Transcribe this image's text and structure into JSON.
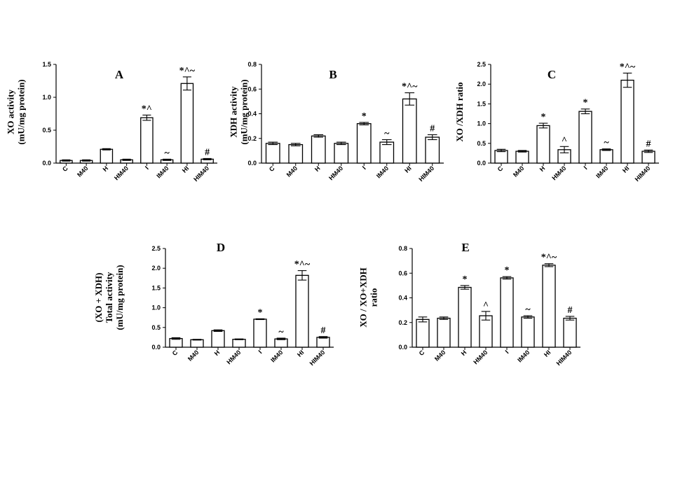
{
  "chart_data": [
    {
      "type": "bar",
      "panel": "A",
      "ylabel": [
        "XO activity",
        "(mU/mg protein)"
      ],
      "categories": [
        "C",
        "M40",
        "H",
        "HM40",
        "I",
        "IM40",
        "HI",
        "HIM40"
      ],
      "values": [
        0.04,
        0.04,
        0.21,
        0.05,
        0.69,
        0.05,
        1.21,
        0.06
      ],
      "errors": [
        0.01,
        0.01,
        0.01,
        0.01,
        0.04,
        0.01,
        0.1,
        0.01
      ],
      "annotations": [
        "",
        "",
        "",
        "",
        "*^",
        "~",
        "*^~",
        "#"
      ],
      "ylim": [
        0,
        1.5
      ],
      "yticks": [
        "0.0",
        "0.5",
        "1.0",
        "1.5"
      ],
      "ytick_values": [
        0,
        0.5,
        1.0,
        1.5
      ]
    },
    {
      "type": "bar",
      "panel": "B",
      "ylabel": [
        "XDH activity",
        "(mU/mg protein)"
      ],
      "categories": [
        "C",
        "M40",
        "H",
        "HM40",
        "I",
        "IM40",
        "HI",
        "HIM40"
      ],
      "values": [
        0.16,
        0.15,
        0.22,
        0.16,
        0.32,
        0.17,
        0.52,
        0.21
      ],
      "errors": [
        0.01,
        0.01,
        0.01,
        0.01,
        0.01,
        0.02,
        0.05,
        0.02
      ],
      "annotations": [
        "",
        "",
        "",
        "",
        "*",
        "~",
        "*^~",
        "#"
      ],
      "ylim": [
        0,
        0.8
      ],
      "yticks": [
        "0.0",
        "0.2",
        "0.4",
        "0.6",
        "0.8"
      ],
      "ytick_values": [
        0,
        0.2,
        0.4,
        0.6,
        0.8
      ]
    },
    {
      "type": "bar",
      "panel": "C",
      "ylabel": [
        "XO /XDH ratio"
      ],
      "categories": [
        "C",
        "M40",
        "H",
        "HM40",
        "I",
        "IM40",
        "HI",
        "HIM40"
      ],
      "values": [
        0.32,
        0.3,
        0.95,
        0.34,
        1.31,
        0.34,
        2.1,
        0.3
      ],
      "errors": [
        0.03,
        0.02,
        0.06,
        0.08,
        0.06,
        0.02,
        0.18,
        0.03
      ],
      "annotations": [
        "",
        "",
        "*",
        "^",
        "*",
        "~",
        "*^~",
        "#"
      ],
      "ylim": [
        0,
        2.5
      ],
      "yticks": [
        "0.0",
        "0.5",
        "1.0",
        "1.5",
        "2.0",
        "2.5"
      ],
      "ytick_values": [
        0,
        0.5,
        1.0,
        1.5,
        2.0,
        2.5
      ]
    },
    {
      "type": "bar",
      "panel": "D",
      "ylabel": [
        "(XO + XDH)",
        "Total activity",
        "(mU/mg protein)"
      ],
      "categories": [
        "C",
        "M40",
        "H",
        "HM40",
        "I",
        "IM40",
        "HI",
        "HIM40"
      ],
      "values": [
        0.22,
        0.19,
        0.42,
        0.2,
        0.71,
        0.21,
        1.82,
        0.25
      ],
      "errors": [
        0.02,
        0.01,
        0.02,
        0.01,
        0.01,
        0.02,
        0.12,
        0.02
      ],
      "annotations": [
        "",
        "",
        "",
        "",
        "*",
        "~",
        "*^~",
        "#"
      ],
      "ylim": [
        0,
        2.5
      ],
      "yticks": [
        "0.0",
        "0.5",
        "1.0",
        "1.5",
        "2.0",
        "2.5"
      ],
      "ytick_values": [
        0,
        0.5,
        1.0,
        1.5,
        2.0,
        2.5
      ]
    },
    {
      "type": "bar",
      "panel": "E",
      "ylabel": [
        "XO / XO+XDH",
        "ratio"
      ],
      "categories": [
        "C",
        "M40",
        "H",
        "HM40",
        "I",
        "IM40",
        "HI",
        "HIM40"
      ],
      "values": [
        0.225,
        0.235,
        0.485,
        0.255,
        0.562,
        0.245,
        0.665,
        0.235
      ],
      "errors": [
        0.02,
        0.01,
        0.015,
        0.035,
        0.01,
        0.01,
        0.012,
        0.015
      ],
      "annotations": [
        "",
        "",
        "*",
        "^",
        "*",
        "~",
        "*^~",
        "#"
      ],
      "ylim": [
        0,
        0.8
      ],
      "yticks": [
        "0.0",
        "0.2",
        "0.4",
        "0.6",
        "0.8"
      ],
      "ytick_values": [
        0,
        0.2,
        0.4,
        0.6,
        0.8
      ]
    }
  ]
}
